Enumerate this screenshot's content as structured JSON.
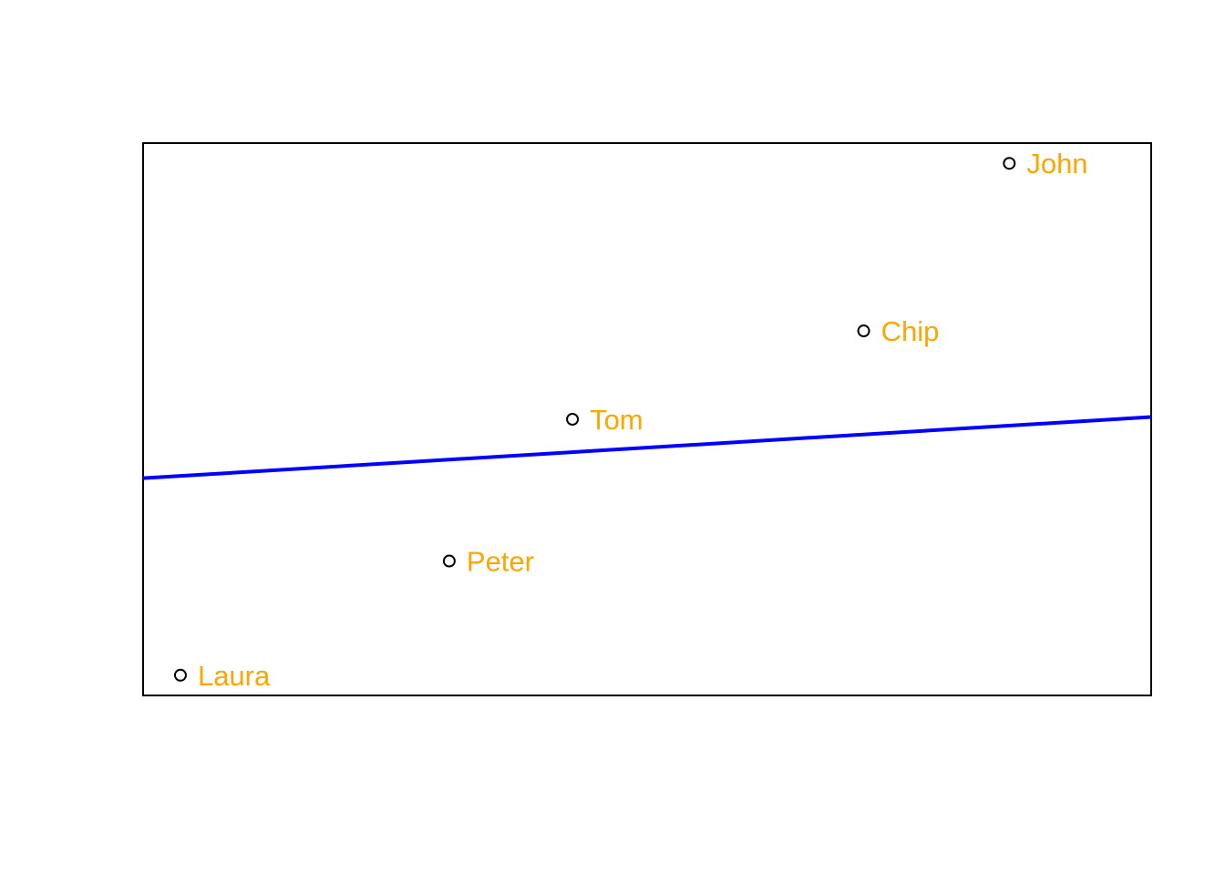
{
  "chart_data": {
    "type": "scatter",
    "title": "",
    "xlabel": "",
    "ylabel": "",
    "axes_shown": false,
    "grid": false,
    "xlim": [
      0,
      27
    ],
    "ylim": [
      0,
      30
    ],
    "points": [
      {
        "label": "Laura",
        "x": 1.0,
        "y": 1.1
      },
      {
        "label": "Peter",
        "x": 8.2,
        "y": 7.3
      },
      {
        "label": "Tom",
        "x": 11.5,
        "y": 15.0
      },
      {
        "label": "Chip",
        "x": 19.3,
        "y": 19.8
      },
      {
        "label": "John",
        "x": 23.2,
        "y": 28.9
      }
    ],
    "regression_line": {
      "intercept": 11.8,
      "slope": 0.123,
      "color": "#0000ff"
    },
    "colors": {
      "point_stroke": "#000000",
      "label": "#ffa500",
      "frame": "#000000"
    }
  }
}
